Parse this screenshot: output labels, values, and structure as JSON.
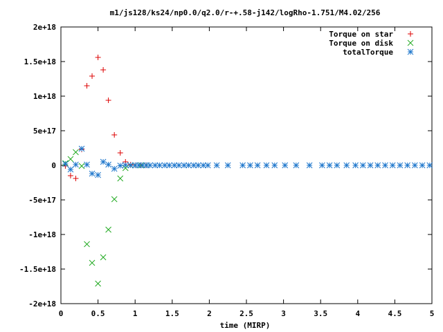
{
  "chart_data": {
    "type": "scatter",
    "title": "m1/js128/ks24/np0.0/q2.0/r-+.58-j142/logRho-1.751/M4.02/256",
    "xlabel": "time (MIRP)",
    "ylabel": "",
    "xlim": [
      0,
      5
    ],
    "ylim": [
      -2e+18,
      2e+18
    ],
    "grid": false,
    "legend_position": "top-right",
    "x_ticks": [
      0,
      0.5,
      1,
      1.5,
      2,
      2.5,
      3,
      3.5,
      4,
      4.5,
      5
    ],
    "x_tick_labels": [
      "0",
      "0.5",
      "1",
      "1.5",
      "2",
      "2.5",
      "3",
      "3.5",
      "4",
      "4.5",
      "5"
    ],
    "y_ticks": [
      2e+18,
      1.5e+18,
      1e+18,
      5e+17,
      0,
      -5e+17,
      -1e+18,
      -1.5e+18,
      -2e+18
    ],
    "y_tick_labels": [
      "2e+18",
      "1.5e+18",
      "1e+18",
      "5e+17",
      "0",
      "-5e+17",
      "-1e+18",
      "-1.5e+18",
      "-2e+18"
    ],
    "series": [
      {
        "name": "Torque on star",
        "marker": "plus",
        "color": "#dd0000",
        "x": [
          0.06,
          0.13,
          0.2,
          0.28,
          0.35,
          0.42,
          0.5,
          0.57,
          0.64,
          0.72,
          0.8,
          0.87,
          0.94,
          1.0,
          1.08,
          1.15
        ],
        "y": [
          -1e+16,
          -1.5e+17,
          -1.9e+17,
          2.3e+17,
          1.15e+18,
          1.29e+18,
          1.56e+18,
          1.38e+18,
          9.4e+17,
          4.4e+17,
          1.8e+17,
          5e+16,
          1e+16,
          0,
          0,
          0
        ]
      },
      {
        "name": "Torque on disk",
        "marker": "cross",
        "color": "#22aa22",
        "x": [
          0.06,
          0.13,
          0.2,
          0.28,
          0.35,
          0.42,
          0.5,
          0.57,
          0.64,
          0.72,
          0.8,
          0.87,
          0.94,
          1.0,
          1.08,
          1.15
        ],
        "y": [
          3e+16,
          9e+16,
          1.9e+17,
          -1e+16,
          -1.14e+18,
          -1.41e+18,
          -1.71e+18,
          -1.33e+18,
          -9.3e+17,
          -4.9e+17,
          -1.9e+17,
          -4e+16,
          0,
          0,
          0,
          0
        ]
      },
      {
        "name": "totalTorque",
        "marker": "star",
        "color": "#1f77cc",
        "x": [
          0.06,
          0.13,
          0.2,
          0.28,
          0.35,
          0.42,
          0.5,
          0.57,
          0.64,
          0.72,
          0.8,
          0.87,
          0.94,
          1.0,
          1.05,
          1.1,
          1.15,
          1.2,
          1.27,
          1.33,
          1.4,
          1.46,
          1.53,
          1.59,
          1.66,
          1.72,
          1.79,
          1.85,
          1.92,
          1.98,
          2.1,
          2.25,
          2.45,
          2.55,
          2.65,
          2.77,
          2.88,
          3.02,
          3.17,
          3.35,
          3.52,
          3.62,
          3.72,
          3.85,
          3.97,
          4.07,
          4.17,
          4.27,
          4.37,
          4.47,
          4.57,
          4.67,
          4.77,
          4.87,
          4.97
        ],
        "y": [
          2e+16,
          -6e+16,
          1e+16,
          2.4e+17,
          1e+16,
          -1.2e+17,
          -1.4e+17,
          5e+16,
          1e+16,
          -5e+16,
          -5000000000000000.0,
          3000000000000000.0,
          0,
          0,
          0,
          0,
          0,
          0,
          0,
          0,
          0,
          0,
          0,
          0,
          0,
          0,
          0,
          0,
          0,
          0,
          0,
          0,
          0,
          0,
          0,
          0,
          0,
          0,
          0,
          0,
          0,
          0,
          0,
          0,
          0,
          0,
          0,
          0,
          0,
          0,
          0,
          0,
          0,
          0,
          0
        ]
      }
    ]
  }
}
